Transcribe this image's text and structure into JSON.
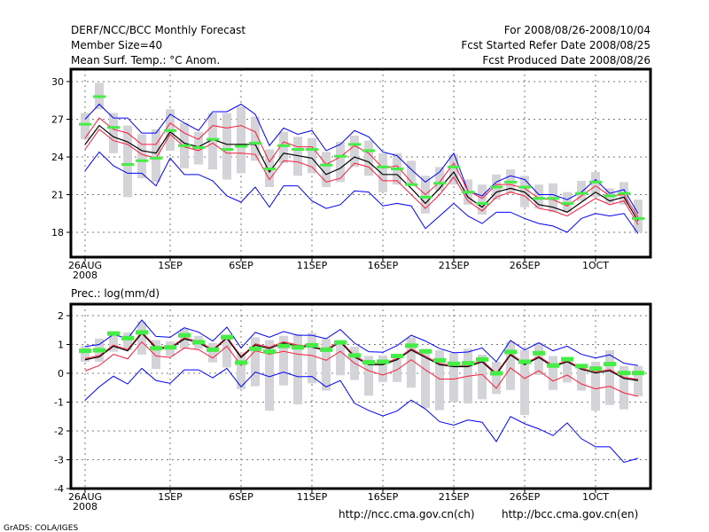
{
  "header": {
    "title": "DERF/NCC/BCC Monthly Forecast",
    "member_size": "Member Size=40",
    "period": "For 2008/08/26-2008/10/04",
    "refer_date": "Fcst Started Refer Date 2008/08/25",
    "produced_date": "Fcst Produced Date 2008/08/26"
  },
  "footer": {
    "link_ch": "http://ncc.cma.gov.cn(ch)",
    "link_en": "http://bcc.cma.gov.cn(en)",
    "credit": "GrADS: COLA/IGES"
  },
  "colors": {
    "mean": "#000000",
    "spread": "#ff1a3c",
    "extreme": "#0000ff",
    "box": "#d3d3d8",
    "marker": "#44ee44"
  },
  "chart_data": [
    {
      "type": "line",
      "title": "Mean Surf. Temp.: °C Anom.",
      "xlabel": "",
      "ylabel": "",
      "x_ticks": [
        {
          "day": 0,
          "label": "26AUG",
          "sub": "2008"
        },
        {
          "day": 6,
          "label": "1SEP"
        },
        {
          "day": 11,
          "label": "6SEP"
        },
        {
          "day": 16,
          "label": "11SEP"
        },
        {
          "day": 21,
          "label": "16SEP"
        },
        {
          "day": 26,
          "label": "21SEP"
        },
        {
          "day": 31,
          "label": "26SEP"
        },
        {
          "day": 36,
          "label": "1OCT"
        }
      ],
      "y_ticks": [
        18,
        21,
        24,
        27,
        30
      ],
      "ylim": [
        15.5,
        31
      ],
      "grid": true,
      "days": 40,
      "series": {
        "mean": [
          25.0,
          26.5,
          25.6,
          25.2,
          24.5,
          24.3,
          26.0,
          25.1,
          24.8,
          25.4,
          25.0,
          25.0,
          25.0,
          22.8,
          24.3,
          24.1,
          23.9,
          22.6,
          23.1,
          24.0,
          23.6,
          22.6,
          22.6,
          21.5,
          20.3,
          21.5,
          22.8,
          20.8,
          20.0,
          21.2,
          21.5,
          21.2,
          20.2,
          20.0,
          19.6,
          20.4,
          21.2,
          20.5,
          20.8,
          18.9
        ],
        "spread_upper": [
          25.5,
          27.1,
          26.2,
          25.9,
          25.0,
          25.0,
          26.7,
          25.9,
          25.4,
          26.5,
          26.3,
          26.5,
          26.0,
          23.6,
          25.2,
          24.8,
          24.8,
          23.4,
          24.0,
          24.9,
          24.3,
          23.1,
          23.3,
          22.0,
          21.0,
          22.0,
          23.5,
          21.3,
          20.7,
          21.8,
          21.8,
          21.5,
          20.7,
          20.6,
          20.1,
          20.9,
          21.7,
          20.9,
          21.0,
          19.2
        ],
        "spread_lower": [
          24.6,
          26.2,
          25.3,
          25.0,
          24.2,
          23.9,
          25.8,
          24.8,
          24.5,
          25.1,
          24.3,
          24.3,
          24.2,
          22.2,
          23.7,
          23.6,
          23.2,
          22.0,
          22.3,
          23.5,
          23.2,
          22.1,
          22.1,
          21.0,
          19.9,
          21.0,
          22.4,
          20.5,
          19.7,
          20.8,
          21.2,
          20.9,
          19.9,
          19.7,
          19.3,
          20.0,
          20.7,
          20.2,
          20.5,
          18.6
        ],
        "max": [
          27.0,
          28.2,
          27.1,
          27.1,
          25.9,
          25.9,
          27.4,
          26.7,
          26.1,
          27.6,
          27.6,
          28.2,
          27.4,
          24.9,
          26.3,
          25.8,
          26.1,
          24.5,
          25.0,
          26.1,
          25.6,
          24.4,
          24.1,
          23.0,
          22.0,
          22.8,
          24.3,
          21.3,
          20.9,
          22.0,
          22.5,
          22.2,
          21.0,
          21.0,
          20.6,
          21.2,
          22.2,
          21.1,
          21.4,
          19.5
        ],
        "min": [
          22.9,
          24.4,
          23.3,
          22.7,
          22.7,
          21.7,
          23.9,
          22.6,
          22.6,
          22.1,
          20.9,
          20.4,
          21.6,
          20.0,
          21.7,
          21.7,
          20.5,
          19.9,
          20.2,
          21.3,
          21.2,
          20.1,
          20.3,
          20.1,
          18.3,
          19.3,
          20.3,
          19.3,
          18.7,
          19.6,
          19.6,
          19.1,
          18.7,
          18.5,
          18.0,
          19.1,
          19.5,
          19.3,
          19.5,
          17.9
        ],
        "box_high": [
          27.5,
          29.9,
          27.5,
          26.5,
          25.8,
          26.2,
          27.8,
          26.7,
          26.0,
          27.5,
          27.5,
          28.0,
          27.2,
          24.6,
          26.0,
          25.6,
          25.5,
          24.4,
          25.2,
          25.7,
          25.3,
          24.3,
          24.3,
          23.7,
          22.5,
          23.2,
          24.2,
          22.2,
          21.8,
          22.6,
          23.0,
          22.5,
          21.8,
          21.9,
          21.2,
          22.1,
          22.8,
          21.5,
          22.0,
          20.6
        ],
        "box_low": [
          25.4,
          27.8,
          24.3,
          20.8,
          22.3,
          22.0,
          24.5,
          23.1,
          23.4,
          23.0,
          22.2,
          22.7,
          23.7,
          21.6,
          23.5,
          22.5,
          22.7,
          21.6,
          22.0,
          23.2,
          22.5,
          21.2,
          21.8,
          21.8,
          19.5,
          21.3,
          21.8,
          20.2,
          19.4,
          20.6,
          21.1,
          20.0,
          19.9,
          19.6,
          19.6,
          20.5,
          20.8,
          20.3,
          20.2,
          18.0
        ],
        "marker": [
          26.6,
          28.8,
          26.35,
          23.4,
          23.7,
          23.9,
          26.1,
          24.9,
          24.75,
          25.4,
          24.6,
          24.85,
          25.1,
          23.05,
          24.9,
          24.6,
          24.6,
          23.35,
          24.05,
          25.0,
          24.5,
          23.2,
          23.05,
          21.8,
          20.8,
          21.9,
          23.2,
          21.2,
          20.3,
          21.6,
          22.0,
          21.6,
          20.7,
          20.7,
          20.3,
          21.1,
          22.0,
          20.9,
          21.1,
          19.1
        ]
      }
    },
    {
      "type": "line",
      "title": "Prec.: log(mm/d)",
      "xlabel": "",
      "ylabel": "",
      "x_ticks": [
        {
          "day": 0,
          "label": "26AUG",
          "sub": "2008"
        },
        {
          "day": 6,
          "label": "1SEP"
        },
        {
          "day": 11,
          "label": "6SEP"
        },
        {
          "day": 16,
          "label": "11SEP"
        },
        {
          "day": 21,
          "label": "16SEP"
        },
        {
          "day": 26,
          "label": "21SEP"
        },
        {
          "day": 31,
          "label": "26SEP"
        },
        {
          "day": 36,
          "label": "1OCT"
        }
      ],
      "y_ticks": [
        -4,
        -3,
        -2,
        -1,
        0,
        1,
        2
      ],
      "ylim": [
        -4,
        2.4
      ],
      "grid": true,
      "days": 40,
      "series": {
        "mean": [
          0.47,
          0.57,
          0.94,
          0.78,
          1.39,
          0.88,
          0.86,
          1.19,
          1.07,
          0.78,
          1.22,
          0.55,
          0.98,
          0.86,
          1.05,
          0.94,
          0.91,
          0.78,
          1.09,
          0.57,
          0.3,
          0.3,
          0.47,
          0.81,
          0.55,
          0.3,
          0.23,
          0.23,
          0.4,
          -0.04,
          0.64,
          0.3,
          0.55,
          0.23,
          0.4,
          0.14,
          0.01,
          0.09,
          -0.18,
          -0.25
        ],
        "spread_upper": [
          0.51,
          0.61,
          0.98,
          0.82,
          1.43,
          0.92,
          0.9,
          1.23,
          1.11,
          0.82,
          1.26,
          0.59,
          1.02,
          0.9,
          1.09,
          0.98,
          0.95,
          0.82,
          1.13,
          0.61,
          0.34,
          0.34,
          0.51,
          0.85,
          0.59,
          0.34,
          0.27,
          0.27,
          0.44,
          0.0,
          0.68,
          0.34,
          0.59,
          0.27,
          0.44,
          0.18,
          0.05,
          0.13,
          -0.14,
          -0.21
        ],
        "spread_lower": [
          0.08,
          0.27,
          0.66,
          0.5,
          1.09,
          0.6,
          0.55,
          0.88,
          0.82,
          0.53,
          0.94,
          0.27,
          0.78,
          0.66,
          0.76,
          0.66,
          0.62,
          0.45,
          0.76,
          0.35,
          0.09,
          -0.06,
          0.12,
          0.47,
          0.12,
          -0.2,
          -0.2,
          -0.1,
          -0.04,
          -0.52,
          0.19,
          -0.18,
          0.09,
          -0.27,
          -0.06,
          -0.37,
          -0.54,
          -0.45,
          -0.68,
          -0.8
        ],
        "max": [
          0.93,
          1.0,
          1.35,
          1.2,
          1.85,
          1.28,
          1.25,
          1.58,
          1.43,
          1.12,
          1.6,
          0.88,
          1.42,
          1.25,
          1.45,
          1.32,
          1.32,
          1.2,
          1.52,
          1.05,
          0.75,
          0.73,
          0.96,
          1.32,
          1.12,
          0.86,
          0.71,
          0.74,
          0.88,
          0.4,
          1.14,
          0.81,
          1.06,
          0.78,
          0.94,
          0.66,
          0.53,
          0.64,
          0.35,
          0.27
        ],
        "min": [
          -0.93,
          -0.47,
          -0.1,
          -0.37,
          0.17,
          -0.25,
          -0.35,
          0.12,
          0.12,
          -0.16,
          0.17,
          -0.47,
          0.04,
          -0.12,
          0.04,
          -0.12,
          -0.11,
          -0.47,
          -0.25,
          -1.04,
          -1.29,
          -1.48,
          -1.31,
          -0.93,
          -1.24,
          -1.68,
          -1.8,
          -1.62,
          -1.7,
          -2.37,
          -1.5,
          -1.75,
          -1.93,
          -2.16,
          -1.72,
          -2.27,
          -2.55,
          -2.55,
          -3.09,
          -2.95
        ],
        "box_high": [
          0.95,
          1.2,
          1.45,
          1.42,
          1.8,
          1.15,
          1.1,
          1.55,
          1.3,
          1.05,
          1.35,
          0.72,
          1.25,
          1.15,
          1.3,
          1.35,
          1.4,
          1.2,
          1.15,
          0.92,
          0.6,
          0.62,
          0.6,
          1.25,
          0.85,
          0.8,
          0.7,
          0.85,
          0.65,
          0.4,
          1.1,
          0.8,
          1.05,
          0.6,
          0.55,
          0.3,
          0.4,
          0.8,
          0.25,
          0.25
        ],
        "box_low": [
          0.4,
          0.4,
          0.75,
          0.8,
          0.65,
          0.15,
          0.6,
          0.85,
          0.85,
          0.38,
          0.2,
          -0.55,
          -0.45,
          -1.3,
          -0.42,
          -1.08,
          -0.35,
          -0.6,
          -0.07,
          -0.23,
          -0.78,
          -0.3,
          -0.3,
          -0.5,
          -1.2,
          -1.28,
          -1.0,
          -1.05,
          -0.9,
          -0.72,
          -0.58,
          -1.45,
          -0.06,
          -0.58,
          -0.32,
          -0.6,
          -1.3,
          -1.1,
          -1.25,
          -0.8
        ],
        "marker": [
          0.78,
          0.8,
          1.38,
          1.22,
          1.42,
          0.87,
          0.9,
          1.32,
          1.08,
          0.82,
          1.25,
          0.37,
          0.85,
          0.75,
          0.95,
          0.9,
          0.97,
          0.82,
          1.07,
          0.62,
          0.38,
          0.4,
          0.6,
          0.96,
          0.76,
          0.45,
          0.33,
          0.35,
          0.48,
          0.0,
          0.74,
          0.4,
          0.7,
          0.27,
          0.49,
          0.25,
          0.16,
          0.32,
          0.01,
          0.01
        ]
      }
    }
  ]
}
